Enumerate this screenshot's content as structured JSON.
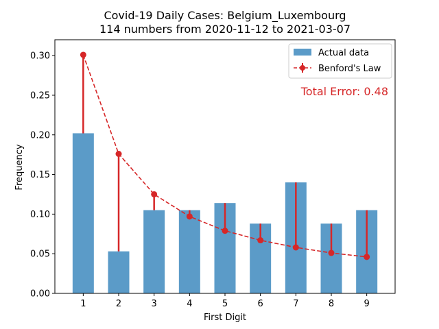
{
  "chart_data": {
    "type": "bar",
    "title": "Covid-19 Daily Cases: Belgium_Luxembourg",
    "subtitle": "114 numbers from 2020-11-12 to 2021-03-07",
    "xlabel": "First Digit",
    "ylabel": "Frequency",
    "categories": [
      "1",
      "2",
      "3",
      "4",
      "5",
      "6",
      "7",
      "8",
      "9"
    ],
    "ylim": [
      0,
      0.32
    ],
    "yticks": [
      "0.00",
      "0.05",
      "0.10",
      "0.15",
      "0.20",
      "0.25",
      "0.30"
    ],
    "series": [
      {
        "name": "Actual data",
        "kind": "bar",
        "color": "#5b9bc8",
        "values": [
          0.202,
          0.053,
          0.105,
          0.105,
          0.114,
          0.088,
          0.14,
          0.088,
          0.105
        ]
      },
      {
        "name": "Benford's Law",
        "kind": "line-errorbar",
        "color": "#d62728",
        "values": [
          0.301,
          0.176,
          0.125,
          0.097,
          0.079,
          0.067,
          0.058,
          0.051,
          0.046
        ]
      }
    ],
    "annotation": {
      "text": "Total Error: 0.48",
      "color": "#d62728"
    },
    "legend_position": "top-right",
    "grid": false
  }
}
